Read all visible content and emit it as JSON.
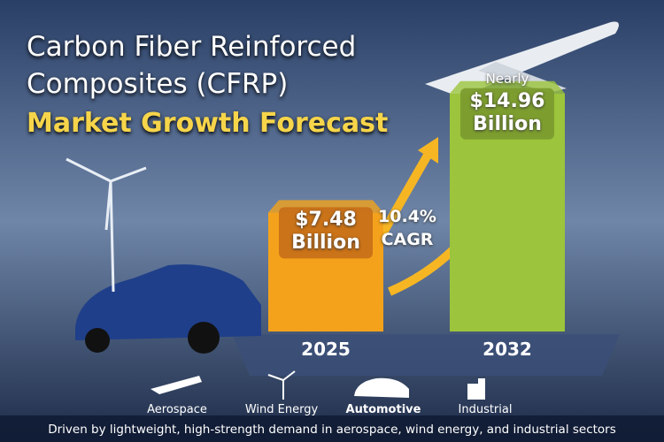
{
  "chart_data": {
    "type": "bar",
    "title": "Carbon Fiber Reinforced Composites (CFRP)",
    "subtitle": "Market Growth Forecast",
    "categories": [
      "2025",
      "2032"
    ],
    "values": [
      7.48,
      14.96
    ],
    "value_labels": [
      "$7.48 Billion",
      "$14.96 Billion"
    ],
    "colors": [
      "#f4a21c",
      "#9cc43c"
    ],
    "annotations": [
      "Nearly",
      "10.4% CAGR"
    ]
  },
  "sectors": [
    "Aerospace",
    "Wind Energy",
    "Automotive",
    "Industrial"
  ],
  "footer": "Driven by lightweight, high-strength demand in aerospace, wind energy, and industrial sectors"
}
